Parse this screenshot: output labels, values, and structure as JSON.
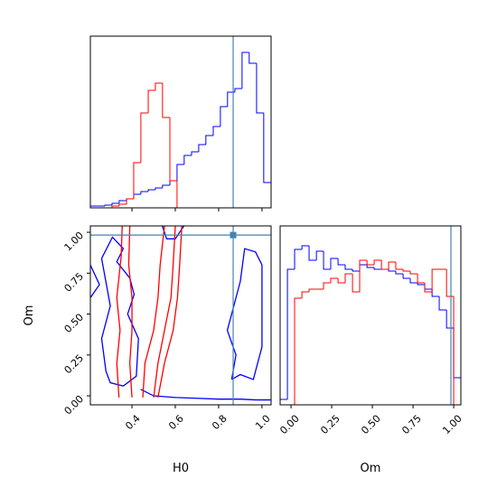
{
  "chart_data": [
    {
      "type": "histogram",
      "xlim": [
        0.208,
        1.042
      ],
      "ylim": [
        0,
        190
      ],
      "xticks": [
        0.4,
        0.6,
        0.8,
        {
          "value": 1,
          "label": "1.0"
        }
      ],
      "show_tick_labels": false,
      "bins": [
        0.208,
        0.241,
        0.275,
        0.308,
        0.341,
        0.375,
        0.408,
        0.441,
        0.475,
        0.508,
        0.541,
        0.575,
        0.608,
        0.641,
        0.675,
        0.708,
        0.741,
        0.775,
        0.808,
        0.841,
        0.875,
        0.908,
        0.941,
        0.975,
        1.008,
        1.042
      ],
      "series": [
        {
          "color": "#0000ff",
          "values": [
            2,
            2,
            3,
            5,
            8,
            10,
            15,
            18,
            20,
            22,
            25,
            30,
            48,
            58,
            62,
            70,
            80,
            90,
            112,
            128,
            132,
            172,
            160,
            105,
            28
          ]
        },
        {
          "color": "#ff0000",
          "values": [
            0,
            0,
            0,
            2,
            4,
            10,
            50,
            105,
            130,
            138,
            100,
            30,
            0,
            0,
            0,
            0,
            0,
            0,
            0,
            0,
            0,
            0,
            0,
            0,
            0
          ]
        }
      ],
      "vline": 0.867,
      "truth_color": "#4682b4"
    },
    {
      "type": "contour",
      "xlabel": "H0",
      "ylabel": "Om",
      "xlim": [
        0.208,
        1.042
      ],
      "ylim": [
        -0.055,
        1.039
      ],
      "xticks": [
        0.4,
        0.6,
        0.8,
        {
          "value": 1,
          "label": "1.0"
        }
      ],
      "yticks": [
        {
          "value": 0,
          "label": "0.00"
        },
        0.25,
        {
          "value": 0.5,
          "label": "0.50"
        },
        0.75,
        {
          "value": 1,
          "label": "1.00"
        }
      ],
      "series": [
        {
          "color": "#0000ff",
          "x": [
            0.44,
            0.5,
            0.6,
            0.7,
            0.8,
            0.9,
            0.97,
            1.042
          ],
          "y": [
            0.04,
            0.0,
            -0.01,
            -0.015,
            -0.02,
            -0.02,
            -0.025,
            -0.025
          ]
        },
        {
          "color": "#0000ff",
          "x": [
            0.28,
            0.3,
            0.36,
            0.42,
            0.43,
            0.38,
            0.41,
            0.39,
            0.33,
            0.36,
            0.31,
            0.26,
            0.3,
            0.26,
            0.28
          ],
          "y": [
            0.15,
            0.08,
            0.06,
            0.12,
            0.35,
            0.5,
            0.62,
            0.72,
            0.82,
            0.9,
            0.97,
            0.84,
            0.55,
            0.35,
            0.15
          ]
        },
        {
          "color": "#0000ff",
          "x": [
            0.208,
            0.25,
            0.208
          ],
          "y": [
            0.8,
            0.68,
            0.6
          ]
        },
        {
          "color": "#0000ff",
          "x": [
            0.86,
            0.9,
            0.96,
            1.0,
            1.0,
            0.97,
            0.92,
            0.9,
            0.87,
            0.84,
            0.88,
            0.86
          ],
          "y": [
            0.1,
            0.13,
            0.1,
            0.3,
            0.8,
            0.88,
            0.9,
            0.7,
            0.55,
            0.4,
            0.25,
            0.1
          ]
        },
        {
          "color": "#0000ff",
          "x": [
            0.54,
            0.56,
            0.6,
            0.62,
            0.64
          ],
          "y": [
            1.039,
            0.96,
            0.96,
            1.0,
            1.039
          ]
        },
        {
          "color": "#ff0000",
          "x": [
            0.34,
            0.33,
            0.345,
            0.33,
            0.35,
            0.355
          ],
          "y": [
            -0.01,
            0.2,
            0.4,
            0.6,
            0.85,
            1.039
          ]
        },
        {
          "color": "#ff0000",
          "x": [
            0.4,
            0.39,
            0.4,
            0.4,
            0.385,
            0.39
          ],
          "y": [
            -0.01,
            0.2,
            0.4,
            0.6,
            0.8,
            1.039
          ]
        },
        {
          "color": "#ff0000",
          "x": [
            0.45,
            0.46,
            0.5,
            0.52,
            0.53,
            0.55
          ],
          "y": [
            -0.01,
            0.2,
            0.4,
            0.6,
            0.8,
            1.039
          ]
        },
        {
          "color": "#ff0000",
          "x": [
            0.5,
            0.52,
            0.55,
            0.58,
            0.59,
            0.6
          ],
          "y": [
            -0.01,
            0.2,
            0.4,
            0.6,
            0.8,
            1.039
          ]
        },
        {
          "color": "#ff0000",
          "x": [
            0.52,
            0.55,
            0.59,
            0.61,
            0.62,
            0.63
          ],
          "y": [
            -0.01,
            0.2,
            0.4,
            0.6,
            0.8,
            1.039
          ]
        }
      ],
      "truth": [
        0.867,
        0.983
      ],
      "truth_color": "#4682b4"
    },
    {
      "type": "histogram",
      "xlabel": "Om",
      "xlim": [
        -0.067,
        1.044
      ],
      "ylim": [
        0,
        198
      ],
      "xticks": [
        {
          "value": 0,
          "label": "0.00"
        },
        0.25,
        {
          "value": 0.5,
          "label": "0.50"
        },
        0.75,
        {
          "value": 1,
          "label": "1.00"
        }
      ],
      "bins": [
        -0.067,
        -0.022,
        0.022,
        0.067,
        0.111,
        0.156,
        0.2,
        0.244,
        0.289,
        0.333,
        0.378,
        0.422,
        0.467,
        0.511,
        0.556,
        0.6,
        0.644,
        0.689,
        0.733,
        0.778,
        0.822,
        0.867,
        0.911,
        0.956,
        1.0,
        1.044
      ],
      "series": [
        {
          "color": "#0000ff",
          "values": [
            6,
            150,
            172,
            176,
            160,
            170,
            150,
            162,
            155,
            150,
            148,
            155,
            152,
            150,
            150,
            148,
            145,
            140,
            135,
            133,
            128,
            120,
            105,
            85,
            30
          ]
        },
        {
          "color": "#ff0000",
          "values": [
            0,
            0,
            118,
            125,
            128,
            128,
            135,
            140,
            135,
            145,
            125,
            160,
            155,
            160,
            150,
            158,
            150,
            148,
            145,
            135,
            125,
            150,
            150,
            120,
            0
          ]
        }
      ],
      "vline": 0.983,
      "truth_color": "#4682b4"
    }
  ]
}
